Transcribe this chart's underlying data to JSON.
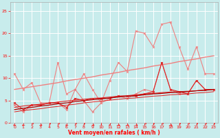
{
  "x": [
    0,
    1,
    2,
    3,
    4,
    5,
    6,
    7,
    8,
    9,
    10,
    11,
    12,
    13,
    14,
    15,
    16,
    17,
    18,
    19,
    20,
    21,
    22,
    23
  ],
  "line_light1": [
    11.0,
    7.5,
    9.0,
    4.5,
    4.5,
    13.5,
    6.5,
    7.5,
    11.0,
    7.5,
    4.5,
    9.5,
    13.5,
    11.5,
    20.5,
    20.0,
    17.0,
    22.0,
    22.5,
    17.0,
    12.0,
    17.0,
    11.0,
    11.0
  ],
  "line_trend_upper": [
    7.5,
    7.8,
    8.1,
    8.4,
    8.7,
    9.0,
    9.4,
    9.7,
    10.0,
    10.3,
    10.7,
    11.0,
    11.3,
    11.7,
    12.0,
    12.3,
    12.7,
    13.0,
    13.3,
    13.7,
    14.0,
    14.3,
    14.7,
    15.0
  ],
  "line_pink_volatile": [
    4.0,
    2.5,
    4.0,
    4.0,
    4.5,
    4.5,
    3.0,
    7.5,
    5.0,
    2.5,
    4.5,
    5.5,
    6.0,
    5.5,
    6.5,
    7.5,
    7.0,
    13.5,
    7.5,
    6.5,
    6.5,
    9.5,
    7.5,
    7.5
  ],
  "line_red_volatile": [
    4.5,
    3.0,
    4.0,
    4.0,
    4.5,
    4.5,
    3.5,
    5.5,
    5.0,
    5.5,
    5.5,
    5.5,
    6.0,
    6.0,
    6.0,
    6.5,
    7.0,
    13.5,
    7.5,
    7.0,
    6.5,
    9.5,
    7.5,
    7.5
  ],
  "line_trend_mid1": [
    3.5,
    3.8,
    4.0,
    4.2,
    4.4,
    4.7,
    4.9,
    5.1,
    5.3,
    5.5,
    5.6,
    5.8,
    6.0,
    6.1,
    6.3,
    6.5,
    6.6,
    6.8,
    6.9,
    7.0,
    7.1,
    7.2,
    7.4,
    7.5
  ],
  "line_trend_mid2": [
    3.0,
    3.3,
    3.5,
    3.8,
    4.0,
    4.3,
    4.5,
    4.8,
    5.0,
    5.2,
    5.4,
    5.6,
    5.8,
    6.0,
    6.1,
    6.3,
    6.5,
    6.6,
    6.8,
    6.9,
    7.0,
    7.2,
    7.3,
    7.5
  ],
  "line_trend_low": [
    2.5,
    2.8,
    3.0,
    3.2,
    3.5,
    3.7,
    4.0,
    4.2,
    4.5,
    4.7,
    4.9,
    5.1,
    5.3,
    5.5,
    5.6,
    5.8,
    6.0,
    6.1,
    6.3,
    6.4,
    6.5,
    6.7,
    6.8,
    7.0
  ],
  "color_light_pink": "#F08080",
  "color_salmon": "#E88080",
  "color_red": "#DD2020",
  "color_dark_red": "#AA0000",
  "background_color": "#C8ECEC",
  "grid_color": "#FFFFFF",
  "xlabel": "Vent moyen/en rafales ( km/h )",
  "ylim": [
    0,
    27
  ],
  "xlim": [
    -0.5,
    23.5
  ],
  "yticks": [
    0,
    5,
    10,
    15,
    20,
    25
  ],
  "xticks": [
    0,
    1,
    2,
    3,
    4,
    5,
    6,
    7,
    8,
    9,
    10,
    11,
    12,
    13,
    14,
    15,
    16,
    17,
    18,
    19,
    20,
    21,
    22,
    23
  ],
  "arrow_symbols": [
    "←",
    "←",
    "↗",
    "→",
    "↗",
    "↗",
    "←",
    "↗",
    "↗",
    "→",
    "↓",
    "↙",
    "→",
    "→",
    "→",
    "↗",
    "↗",
    "↗",
    "→",
    "↗",
    "↗",
    "↗",
    "↗",
    "↗"
  ]
}
